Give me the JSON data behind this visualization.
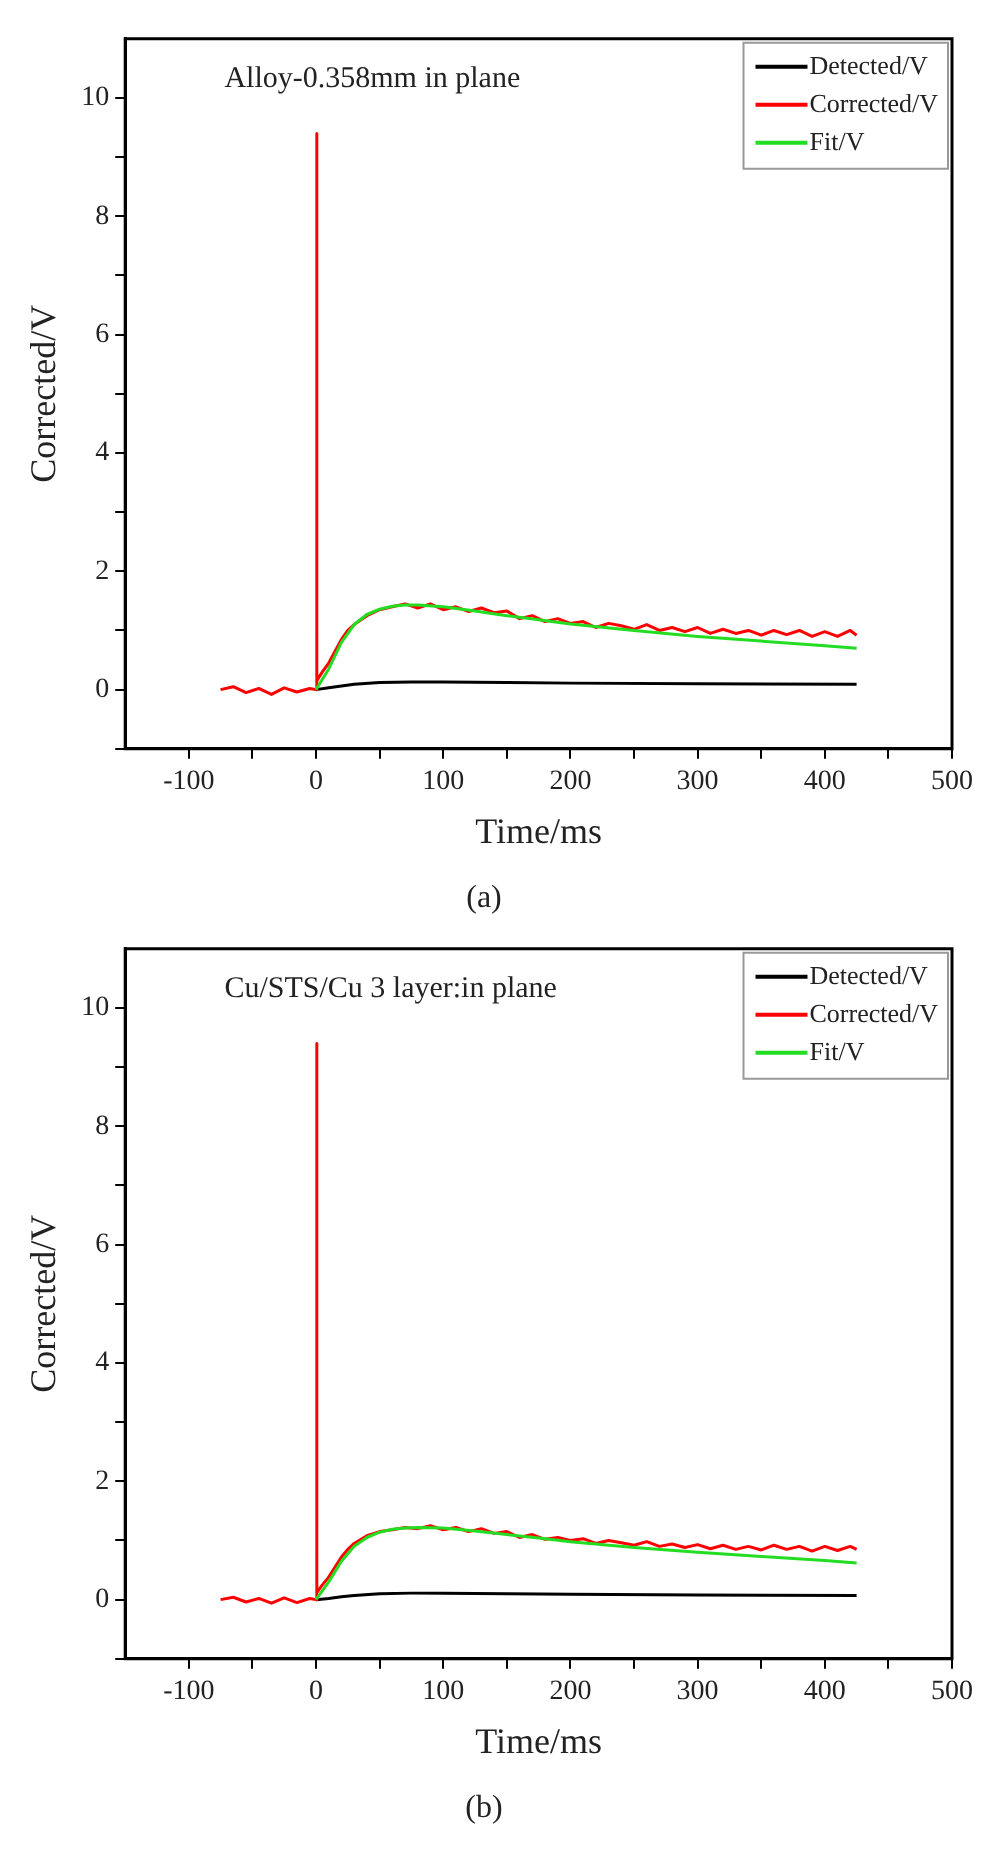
{
  "chart_data": [
    {
      "type": "line",
      "title": "(a)",
      "xlabel": "Time/ms",
      "ylabel": "Corrected/V",
      "annotations": [
        "Alloy-0.358mm in plane"
      ],
      "xlim": [
        -150,
        500
      ],
      "ylim": [
        -1,
        11
      ],
      "xticks": [
        -100,
        {
          "value": -50,
          "label": null
        },
        0,
        {
          "value": 50,
          "label": null
        },
        100,
        {
          "value": 150,
          "label": null
        },
        200,
        {
          "value": 250,
          "label": null
        },
        300,
        {
          "value": 350,
          "label": null
        },
        400,
        {
          "value": 450,
          "label": null
        },
        500
      ],
      "yticks": [
        {
          "value": -1,
          "label": null
        },
        0,
        {
          "value": 1,
          "label": null
        },
        2,
        {
          "value": 3,
          "label": null
        },
        4,
        {
          "value": 5,
          "label": null
        },
        6,
        {
          "value": 7,
          "label": null
        },
        8,
        {
          "value": 9,
          "label": null
        },
        10
      ],
      "grid": false,
      "legend": "top right",
      "marker": "none",
      "line_style": "solid",
      "series": [
        {
          "name": "Detected/V",
          "color": "#000000",
          "x": [
            0,
            10,
            20,
            30,
            50,
            75,
            100,
            150,
            200,
            300,
            425
          ],
          "values": [
            0,
            0.03,
            0.06,
            0.09,
            0.12,
            0.13,
            0.13,
            0.12,
            0.11,
            0.1,
            0.09
          ]
        },
        {
          "name": "Corrected/V",
          "color": "#ff0000",
          "x": [
            -75,
            -65,
            -55,
            -45,
            -35,
            -25,
            -15,
            -5,
            0,
            0.3,
            1,
            5,
            10,
            15,
            20,
            25,
            30,
            40,
            50,
            60,
            70,
            80,
            90,
            100,
            110,
            120,
            130,
            140,
            150,
            160,
            170,
            180,
            190,
            200,
            210,
            220,
            230,
            240,
            250,
            260,
            270,
            280,
            290,
            300,
            310,
            320,
            330,
            340,
            350,
            360,
            370,
            380,
            390,
            400,
            410,
            420,
            425
          ],
          "values": [
            0,
            0.05,
            -0.05,
            0.02,
            -0.08,
            0.03,
            -0.04,
            0.02,
            0,
            9.4,
            0.15,
            0.3,
            0.45,
            0.65,
            0.85,
            1.0,
            1.1,
            1.25,
            1.35,
            1.4,
            1.45,
            1.38,
            1.45,
            1.35,
            1.4,
            1.32,
            1.38,
            1.3,
            1.33,
            1.2,
            1.25,
            1.15,
            1.2,
            1.12,
            1.15,
            1.05,
            1.12,
            1.08,
            1.02,
            1.1,
            1.0,
            1.05,
            0.98,
            1.05,
            0.95,
            1.02,
            0.95,
            1.0,
            0.92,
            1.0,
            0.93,
            1.0,
            0.9,
            0.98,
            0.9,
            1.0,
            0.92
          ]
        },
        {
          "name": "Fit/V",
          "color": "#22dd22",
          "x": [
            0,
            10,
            20,
            30,
            40,
            50,
            60,
            70,
            80,
            100,
            125,
            150,
            175,
            200,
            250,
            300,
            350,
            400,
            425
          ],
          "values": [
            0,
            0.35,
            0.8,
            1.1,
            1.27,
            1.36,
            1.41,
            1.43,
            1.43,
            1.4,
            1.33,
            1.25,
            1.18,
            1.11,
            1.0,
            0.9,
            0.82,
            0.74,
            0.7
          ]
        }
      ]
    },
    {
      "type": "line",
      "title": "(b)",
      "xlabel": "Time/ms",
      "ylabel": "Corrected/V",
      "annotations": [
        "Cu/STS/Cu 3 layer:in plane"
      ],
      "xlim": [
        -150,
        500
      ],
      "ylim": [
        -1,
        11
      ],
      "xticks": [
        -100,
        {
          "value": -50,
          "label": null
        },
        0,
        {
          "value": 50,
          "label": null
        },
        100,
        {
          "value": 150,
          "label": null
        },
        200,
        {
          "value": 250,
          "label": null
        },
        300,
        {
          "value": 350,
          "label": null
        },
        400,
        {
          "value": 450,
          "label": null
        },
        500
      ],
      "yticks": [
        {
          "value": -1,
          "label": null
        },
        0,
        {
          "value": 1,
          "label": null
        },
        2,
        {
          "value": 3,
          "label": null
        },
        4,
        {
          "value": 5,
          "label": null
        },
        6,
        {
          "value": 7,
          "label": null
        },
        8,
        {
          "value": 9,
          "label": null
        },
        10
      ],
      "grid": false,
      "legend": "top right",
      "marker": "none",
      "line_style": "solid",
      "series": [
        {
          "name": "Detected/V",
          "color": "#000000",
          "x": [
            0,
            10,
            20,
            30,
            50,
            75,
            100,
            150,
            200,
            300,
            425
          ],
          "values": [
            0,
            0.02,
            0.05,
            0.07,
            0.1,
            0.11,
            0.11,
            0.1,
            0.09,
            0.08,
            0.07
          ]
        },
        {
          "name": "Corrected/V",
          "color": "#ff0000",
          "x": [
            -75,
            -65,
            -55,
            -45,
            -35,
            -25,
            -15,
            -5,
            0,
            0.3,
            1,
            5,
            10,
            15,
            20,
            25,
            30,
            40,
            50,
            60,
            70,
            80,
            90,
            100,
            110,
            120,
            130,
            140,
            150,
            160,
            170,
            180,
            190,
            200,
            210,
            220,
            230,
            240,
            250,
            260,
            270,
            280,
            290,
            300,
            310,
            320,
            330,
            340,
            350,
            360,
            370,
            380,
            390,
            400,
            410,
            420,
            425
          ],
          "values": [
            0,
            0.04,
            -0.04,
            0.02,
            -0.06,
            0.03,
            -0.05,
            0.02,
            0,
            9.4,
            0.12,
            0.25,
            0.38,
            0.55,
            0.72,
            0.85,
            0.95,
            1.08,
            1.15,
            1.18,
            1.22,
            1.2,
            1.25,
            1.18,
            1.22,
            1.15,
            1.2,
            1.12,
            1.15,
            1.05,
            1.1,
            1.02,
            1.05,
            1.0,
            1.03,
            0.95,
            1.0,
            0.96,
            0.92,
            0.98,
            0.9,
            0.94,
            0.88,
            0.93,
            0.86,
            0.92,
            0.85,
            0.9,
            0.84,
            0.92,
            0.85,
            0.9,
            0.82,
            0.9,
            0.83,
            0.9,
            0.85
          ]
        },
        {
          "name": "Fit/V",
          "color": "#22dd22",
          "x": [
            0,
            10,
            20,
            30,
            40,
            50,
            60,
            70,
            80,
            100,
            125,
            150,
            175,
            200,
            250,
            300,
            350,
            400,
            425
          ],
          "values": [
            0,
            0.3,
            0.65,
            0.9,
            1.05,
            1.14,
            1.19,
            1.21,
            1.22,
            1.21,
            1.16,
            1.1,
            1.04,
            0.98,
            0.88,
            0.8,
            0.73,
            0.66,
            0.62
          ]
        }
      ]
    }
  ]
}
